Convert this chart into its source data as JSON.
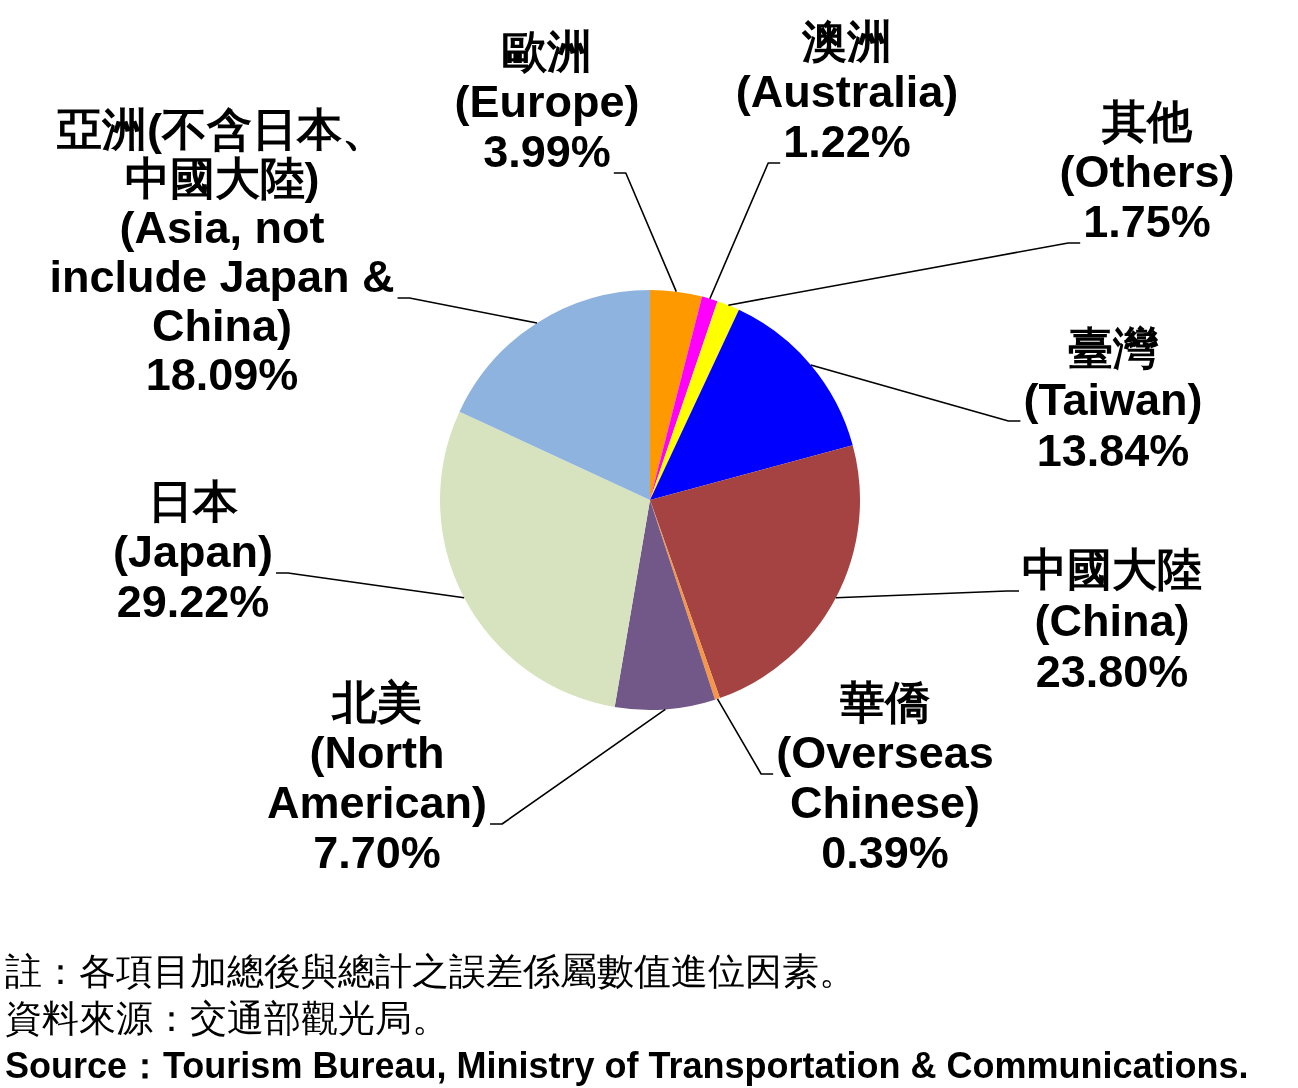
{
  "chart_data": {
    "type": "pie",
    "categories": [
      "歐洲\n(Europe)",
      "澳洲\n(Australia)",
      "其他\n(Others)",
      "臺灣\n(Taiwan)",
      "中國大陸\n(China)",
      "華僑\n(Overseas\nChinese)",
      "北美\n(North\nAmerican)",
      "日本\n(Japan)",
      "亞洲(不含日本、中國大陸)\n(Asia, not\ninclude Japan &\nChina)"
    ],
    "values": [
      3.99,
      1.22,
      1.75,
      13.84,
      23.8,
      0.39,
      7.7,
      29.22,
      18.09
    ],
    "colors": [
      "#ff9900",
      "#ff00ff",
      "#ffff00",
      "#0000ff",
      "#a54343",
      "#f79646",
      "#725889",
      "#d7e3bf",
      "#8db3de"
    ],
    "value_labels": [
      "3.99%",
      "1.22%",
      "1.75%",
      "13.84%",
      "23.80%",
      "0.39%",
      "7.70%",
      "29.22%",
      "18.09%"
    ],
    "annotations": [
      "註：各項目加總後與總計之誤差係屬數值進位因素。",
      "資料來源：交通部觀光局。",
      "Source：Tourism Bureau, Ministry of Transportation & Communications."
    ]
  }
}
